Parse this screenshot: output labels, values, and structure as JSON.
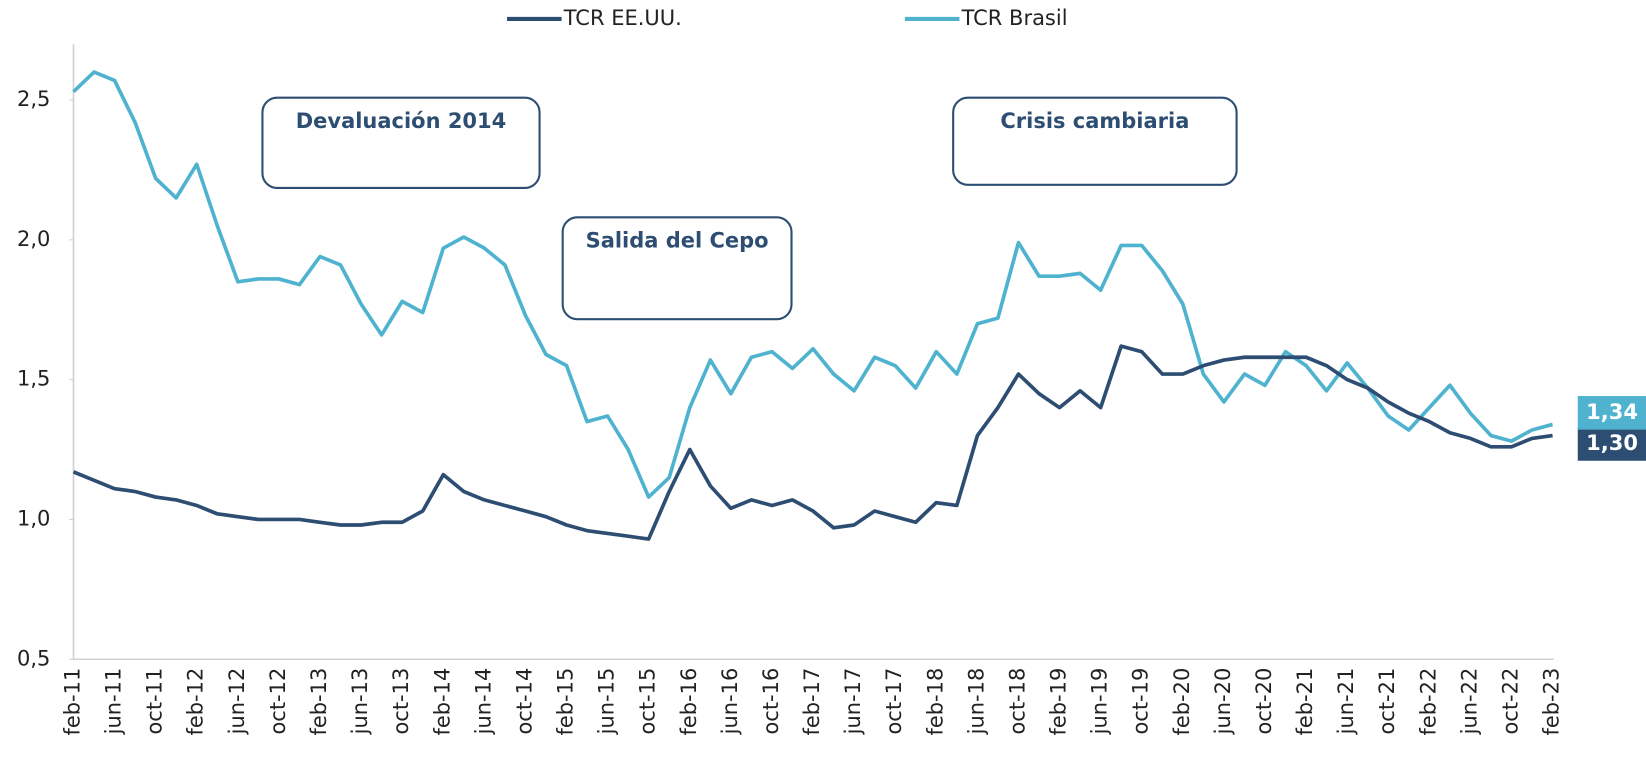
{
  "chart_data": {
    "type": "line",
    "categories": [
      "feb-11",
      null,
      "jun-11",
      null,
      "oct-11",
      null,
      "feb-12",
      null,
      "jun-12",
      null,
      "oct-12",
      null,
      "feb-13",
      null,
      "jun-13",
      null,
      "oct-13",
      null,
      "feb-14",
      null,
      "jun-14",
      null,
      "oct-14",
      null,
      "feb-15",
      null,
      "jun-15",
      null,
      "oct-15",
      null,
      "feb-16",
      null,
      "jun-16",
      null,
      "oct-16",
      null,
      "feb-17",
      null,
      "jun-17",
      null,
      "oct-17",
      null,
      "feb-18",
      null,
      "jun-18",
      null,
      "oct-18",
      null,
      "feb-19",
      null,
      "jun-19",
      null,
      "oct-19",
      null,
      "feb-20",
      null,
      "jun-20",
      null,
      "oct-20",
      null,
      "feb-21",
      null,
      "jun-21",
      null,
      "oct-21",
      null,
      "feb-22",
      null,
      "jun-22",
      null,
      "oct-22",
      null,
      "feb-23"
    ],
    "series": [
      {
        "name": "TCR EE.UU.",
        "color": "#2d4e72",
        "values": [
          1.17,
          1.14,
          1.11,
          1.1,
          1.08,
          1.07,
          1.05,
          1.02,
          1.01,
          1.0,
          1.0,
          1.0,
          0.99,
          0.98,
          0.98,
          0.99,
          0.99,
          1.03,
          1.16,
          1.1,
          1.07,
          1.05,
          1.03,
          1.01,
          0.98,
          0.96,
          0.95,
          0.94,
          0.93,
          1.1,
          1.25,
          1.12,
          1.04,
          1.07,
          1.05,
          1.07,
          1.03,
          0.97,
          0.98,
          1.03,
          1.01,
          0.99,
          1.06,
          1.05,
          1.3,
          1.4,
          1.52,
          1.45,
          1.4,
          1.46,
          1.4,
          1.62,
          1.6,
          1.52,
          1.52,
          1.55,
          1.57,
          1.58,
          1.58,
          1.58,
          1.58,
          1.55,
          1.5,
          1.47,
          1.42,
          1.38,
          1.35,
          1.31,
          1.29,
          1.26,
          1.26,
          1.29,
          1.3
        ],
        "value_labels": [
          null,
          null,
          null,
          null,
          null,
          null,
          null,
          null,
          null,
          null,
          null,
          null,
          null,
          null,
          null,
          null,
          null,
          null,
          null,
          null,
          null,
          null,
          null,
          null,
          null,
          null,
          null,
          null,
          null,
          null,
          null,
          null,
          null,
          null,
          null,
          null,
          null,
          null,
          null,
          null,
          null,
          null,
          null,
          null,
          null,
          null,
          null,
          null,
          null,
          null,
          null,
          null,
          null,
          null,
          null,
          null,
          null,
          null,
          null,
          null,
          null,
          null,
          null,
          null,
          null,
          null,
          null,
          null,
          null,
          null,
          null,
          null,
          "1,30"
        ]
      },
      {
        "name": "TCR Brasil",
        "color": "#4fb3cf",
        "values": [
          2.53,
          2.6,
          2.57,
          2.42,
          2.22,
          2.15,
          2.27,
          2.05,
          1.85,
          1.86,
          1.86,
          1.84,
          1.94,
          1.91,
          1.77,
          1.66,
          1.78,
          1.74,
          1.97,
          2.01,
          1.97,
          1.91,
          1.73,
          1.59,
          1.55,
          1.35,
          1.37,
          1.25,
          1.08,
          1.15,
          1.4,
          1.57,
          1.45,
          1.58,
          1.6,
          1.54,
          1.61,
          1.52,
          1.46,
          1.58,
          1.55,
          1.47,
          1.6,
          1.52,
          1.7,
          1.72,
          1.99,
          1.87,
          1.87,
          1.88,
          1.82,
          1.98,
          1.98,
          1.89,
          1.77,
          1.52,
          1.42,
          1.52,
          1.48,
          1.6,
          1.55,
          1.46,
          1.56,
          1.47,
          1.37,
          1.32,
          1.4,
          1.48,
          1.38,
          1.3,
          1.28,
          1.32,
          1.34
        ],
        "value_labels": [
          null,
          null,
          null,
          null,
          null,
          null,
          null,
          null,
          null,
          null,
          null,
          null,
          null,
          null,
          null,
          null,
          null,
          null,
          null,
          null,
          null,
          null,
          null,
          null,
          null,
          null,
          null,
          null,
          null,
          null,
          null,
          null,
          null,
          null,
          null,
          null,
          null,
          null,
          null,
          null,
          null,
          null,
          null,
          null,
          null,
          null,
          null,
          null,
          null,
          null,
          null,
          null,
          null,
          null,
          null,
          null,
          null,
          null,
          null,
          null,
          null,
          null,
          null,
          null,
          null,
          null,
          null,
          null,
          null,
          null,
          null,
          null,
          "1,34"
        ]
      }
    ],
    "ylim": [
      0.5,
      2.7
    ],
    "yticks": [
      {
        "value": 0.5,
        "label": "0,5"
      },
      {
        "value": 1.0,
        "label": "1,0"
      },
      {
        "value": 1.5,
        "label": "1,5"
      },
      {
        "value": 2.0,
        "label": "2,0"
      },
      {
        "value": 2.5,
        "label": "2,5"
      }
    ],
    "grid": false,
    "legend": "top",
    "annotations": [
      "Devaluación 2014",
      "Salida del Cepo",
      "Crisis cambiaria"
    ]
  }
}
